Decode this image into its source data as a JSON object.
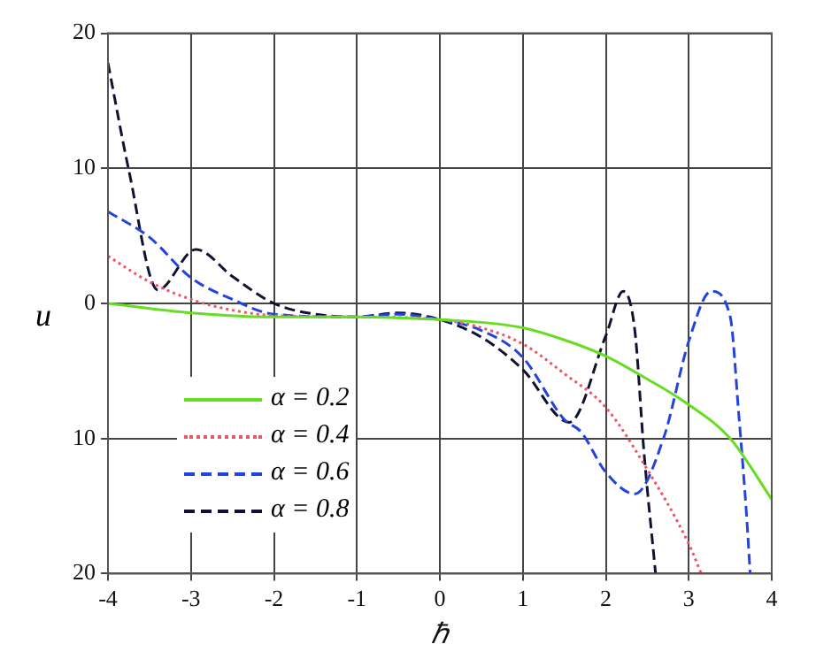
{
  "chart_data": {
    "type": "line",
    "xlabel": "ℏ",
    "ylabel": "u",
    "xlim": [
      -4,
      4
    ],
    "xticks": [
      -4,
      -3,
      -2,
      -1,
      0,
      1,
      2,
      3,
      4
    ],
    "ylim": [
      -20,
      20
    ],
    "yticks": [
      20,
      10,
      0,
      {
        "value": -10,
        "label": "10"
      },
      {
        "value": -20,
        "label": "20"
      }
    ],
    "grid": true,
    "legend": "left",
    "marker": "none",
    "series": [
      {
        "name": "α = 0.2",
        "color": "#66dd22",
        "line_style": "solid",
        "x": [
          -4,
          -3,
          -2,
          -1,
          0,
          0.5,
          1,
          1.5,
          2,
          2.5,
          3,
          3.5,
          4
        ],
        "values": [
          0,
          -0.7,
          -1,
          -1,
          -1.2,
          -1.4,
          -1.8,
          -2.7,
          -3.9,
          -5.6,
          -7.5,
          -10,
          -14.5
        ]
      },
      {
        "name": "α = 0.4",
        "color": "#ee5566",
        "line_style": "dotted",
        "x": [
          -4,
          -3.5,
          -3,
          -2.5,
          -2,
          -1,
          0,
          0.5,
          1,
          1.5,
          2,
          2.5,
          3,
          3.15
        ],
        "values": [
          3.5,
          1.6,
          0.3,
          -0.5,
          -0.9,
          -1,
          -1.2,
          -1.8,
          -3,
          -5.2,
          -7.7,
          -12.3,
          -17.8,
          -20
        ]
      },
      {
        "name": "α = 0.6",
        "color": "#2244dd",
        "line_style": "dashed",
        "x": [
          -4,
          -3.5,
          -3,
          -2.5,
          -2,
          -1,
          -0.5,
          0,
          0.5,
          1,
          1.5,
          1.7,
          2,
          2.35,
          2.7,
          3,
          3.27,
          3.5,
          3.6,
          3.7,
          3.74
        ],
        "values": [
          6.8,
          4.9,
          1.9,
          0.3,
          -0.8,
          -1,
          -0.8,
          -1.2,
          -2,
          -4,
          -8.6,
          -9.5,
          -12.5,
          -14.1,
          -9.9,
          -2.8,
          0.9,
          -1,
          -8,
          -16,
          -20
        ]
      },
      {
        "name": "α = 0.8",
        "color": "#111133",
        "line_style": "dashed",
        "x": [
          -4,
          -3.75,
          -3.4,
          -2.94,
          -2.5,
          -2,
          -1.5,
          -1,
          -0.5,
          0,
          0.5,
          1,
          1.56,
          2,
          2.21,
          2.35,
          2.46,
          2.6
        ],
        "values": [
          17.8,
          9.9,
          1,
          4,
          2,
          0,
          -0.8,
          -1,
          -0.7,
          -1.2,
          -2.5,
          -4.9,
          -8.8,
          -2.4,
          0.9,
          -2,
          -11,
          -20
        ]
      }
    ]
  }
}
